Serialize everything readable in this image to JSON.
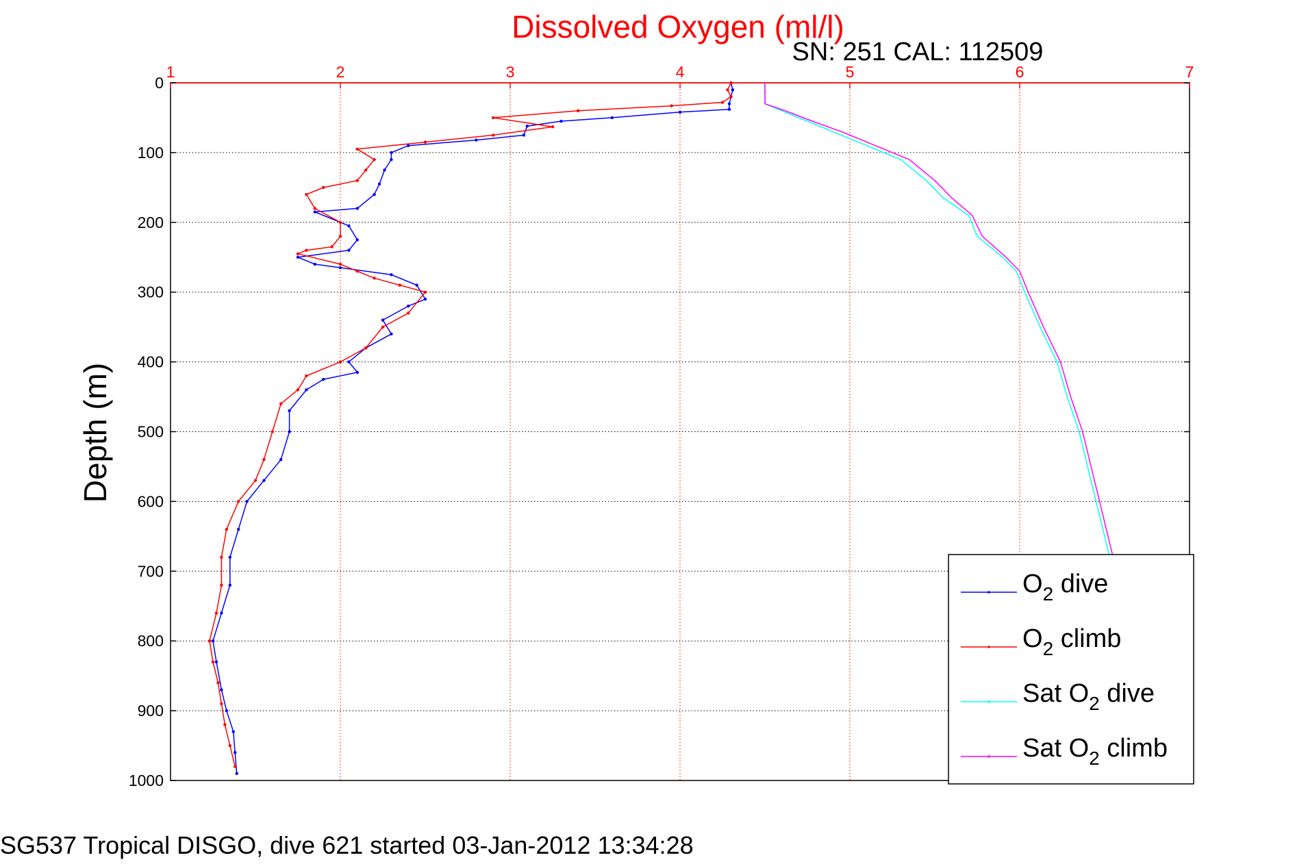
{
  "chart_data": {
    "type": "line",
    "title": "Dissolved Oxygen (ml/l)",
    "subtitle": "SN: 251  CAL: 112509",
    "ylabel": "Depth (m)",
    "footer": "SG537 Tropical DISGO, dive 621 started 03-Jan-2012 13:34:28",
    "xlim": [
      1,
      7
    ],
    "ylim": [
      0,
      1000
    ],
    "y_reversed": true,
    "x_axis_position": "top",
    "xticks": [
      1,
      2,
      3,
      4,
      5,
      6,
      7
    ],
    "yticks": [
      0,
      100,
      200,
      300,
      400,
      500,
      600,
      700,
      800,
      900,
      1000
    ],
    "grid": true,
    "legend_position": "lower-right",
    "series": [
      {
        "name": "O2 dive",
        "legend": {
          "main": "O",
          "sub": "2",
          "suffix": " dive"
        },
        "color": "#0000ff",
        "style": "line-points",
        "points": [
          [
            4.3,
            0
          ],
          [
            4.31,
            10
          ],
          [
            4.3,
            20
          ],
          [
            4.29,
            30
          ],
          [
            4.29,
            38
          ],
          [
            4.0,
            42
          ],
          [
            3.6,
            50
          ],
          [
            3.3,
            55
          ],
          [
            3.1,
            62
          ],
          [
            3.08,
            75
          ],
          [
            2.8,
            82
          ],
          [
            2.4,
            90
          ],
          [
            2.3,
            100
          ],
          [
            2.3,
            110
          ],
          [
            2.26,
            125
          ],
          [
            2.23,
            145
          ],
          [
            2.2,
            160
          ],
          [
            2.1,
            180
          ],
          [
            1.85,
            185
          ],
          [
            2.05,
            205
          ],
          [
            2.1,
            225
          ],
          [
            2.05,
            240
          ],
          [
            1.75,
            250
          ],
          [
            1.85,
            260
          ],
          [
            2.0,
            265
          ],
          [
            2.3,
            275
          ],
          [
            2.45,
            290
          ],
          [
            2.5,
            310
          ],
          [
            2.4,
            320
          ],
          [
            2.25,
            340
          ],
          [
            2.3,
            360
          ],
          [
            2.15,
            380
          ],
          [
            2.05,
            400
          ],
          [
            2.1,
            415
          ],
          [
            1.9,
            425
          ],
          [
            1.8,
            440
          ],
          [
            1.7,
            470
          ],
          [
            1.7,
            500
          ],
          [
            1.65,
            540
          ],
          [
            1.55,
            570
          ],
          [
            1.45,
            600
          ],
          [
            1.4,
            640
          ],
          [
            1.35,
            680
          ],
          [
            1.35,
            720
          ],
          [
            1.3,
            760
          ],
          [
            1.25,
            800
          ],
          [
            1.27,
            830
          ],
          [
            1.3,
            870
          ],
          [
            1.33,
            900
          ],
          [
            1.37,
            930
          ],
          [
            1.38,
            960
          ],
          [
            1.39,
            990
          ]
        ]
      },
      {
        "name": "O2 climb",
        "legend": {
          "main": "O",
          "sub": "2",
          "suffix": " climb"
        },
        "color": "#ff0000",
        "style": "line-points",
        "points": [
          [
            4.3,
            0
          ],
          [
            4.28,
            10
          ],
          [
            4.3,
            20
          ],
          [
            4.25,
            28
          ],
          [
            3.95,
            33
          ],
          [
            3.4,
            40
          ],
          [
            2.9,
            50
          ],
          [
            3.25,
            63
          ],
          [
            2.9,
            75
          ],
          [
            2.5,
            85
          ],
          [
            2.1,
            95
          ],
          [
            2.2,
            110
          ],
          [
            2.15,
            125
          ],
          [
            2.1,
            140
          ],
          [
            1.9,
            150
          ],
          [
            1.8,
            160
          ],
          [
            1.85,
            180
          ],
          [
            2.0,
            200
          ],
          [
            2.0,
            220
          ],
          [
            1.95,
            235
          ],
          [
            1.8,
            240
          ],
          [
            1.75,
            245
          ],
          [
            2.0,
            260
          ],
          [
            2.1,
            270
          ],
          [
            2.2,
            280
          ],
          [
            2.35,
            290
          ],
          [
            2.5,
            300
          ],
          [
            2.4,
            330
          ],
          [
            2.25,
            350
          ],
          [
            2.15,
            380
          ],
          [
            2.0,
            400
          ],
          [
            1.8,
            420
          ],
          [
            1.75,
            440
          ],
          [
            1.65,
            460
          ],
          [
            1.6,
            500
          ],
          [
            1.55,
            540
          ],
          [
            1.5,
            570
          ],
          [
            1.4,
            600
          ],
          [
            1.33,
            640
          ],
          [
            1.3,
            680
          ],
          [
            1.3,
            720
          ],
          [
            1.27,
            760
          ],
          [
            1.23,
            800
          ],
          [
            1.25,
            830
          ],
          [
            1.28,
            860
          ],
          [
            1.3,
            890
          ],
          [
            1.32,
            920
          ],
          [
            1.35,
            950
          ],
          [
            1.38,
            980
          ]
        ]
      },
      {
        "name": "Sat O2 dive",
        "legend": {
          "main": "Sat O",
          "sub": "2",
          "suffix": " dive"
        },
        "color": "#00ffff",
        "style": "line",
        "points": [
          [
            4.5,
            0
          ],
          [
            4.5,
            30
          ],
          [
            4.6,
            40
          ],
          [
            4.75,
            55
          ],
          [
            4.9,
            70
          ],
          [
            5.1,
            90
          ],
          [
            5.3,
            110
          ],
          [
            5.45,
            140
          ],
          [
            5.55,
            165
          ],
          [
            5.7,
            190
          ],
          [
            5.75,
            220
          ],
          [
            5.9,
            250
          ],
          [
            5.98,
            270
          ],
          [
            6.03,
            300
          ],
          [
            6.12,
            350
          ],
          [
            6.22,
            400
          ],
          [
            6.28,
            450
          ],
          [
            6.35,
            500
          ],
          [
            6.4,
            550
          ],
          [
            6.45,
            600
          ],
          [
            6.5,
            650
          ],
          [
            6.55,
            700
          ],
          [
            6.62,
            750
          ],
          [
            6.68,
            800
          ],
          [
            6.73,
            850
          ],
          [
            6.78,
            900
          ],
          [
            6.82,
            950
          ],
          [
            6.85,
            995
          ]
        ]
      },
      {
        "name": "Sat O2 climb",
        "legend": {
          "main": "Sat O",
          "sub": "2",
          "suffix": " climb"
        },
        "color": "#ff00ff",
        "style": "line",
        "points": [
          [
            4.5,
            0
          ],
          [
            4.5,
            30
          ],
          [
            4.62,
            40
          ],
          [
            4.78,
            55
          ],
          [
            4.95,
            70
          ],
          [
            5.15,
            90
          ],
          [
            5.35,
            110
          ],
          [
            5.5,
            140
          ],
          [
            5.6,
            165
          ],
          [
            5.72,
            190
          ],
          [
            5.78,
            220
          ],
          [
            5.92,
            250
          ],
          [
            6.0,
            270
          ],
          [
            6.05,
            300
          ],
          [
            6.14,
            350
          ],
          [
            6.24,
            400
          ],
          [
            6.3,
            450
          ],
          [
            6.37,
            500
          ],
          [
            6.42,
            550
          ],
          [
            6.47,
            600
          ],
          [
            6.52,
            650
          ],
          [
            6.57,
            700
          ],
          [
            6.64,
            750
          ],
          [
            6.7,
            800
          ],
          [
            6.75,
            850
          ],
          [
            6.8,
            900
          ],
          [
            6.83,
            950
          ],
          [
            6.85,
            995
          ]
        ]
      }
    ]
  }
}
